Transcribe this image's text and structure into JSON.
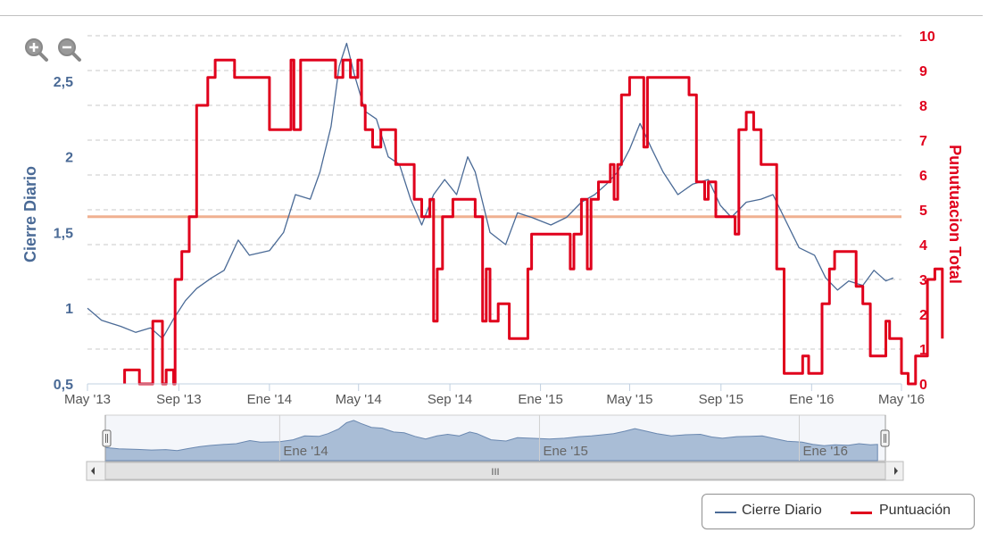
{
  "zoom": {
    "zoom_in_icon": "magnifier-plus-icon",
    "zoom_out_icon": "magnifier-minus-icon"
  },
  "chart_data": {
    "type": "line",
    "x_ticks": [
      "May '13",
      "Sep '13",
      "Ene '14",
      "May '14",
      "Sep '14",
      "Ene '15",
      "May '15",
      "Sep '15",
      "Ene '16",
      "May '16"
    ],
    "x_tick_dates": [
      "2013-05-01",
      "2013-09-01",
      "2014-01-01",
      "2014-05-01",
      "2014-09-01",
      "2015-01-01",
      "2015-05-01",
      "2015-09-01",
      "2016-01-01",
      "2016-05-01"
    ],
    "xlim": [
      "2013-05-01",
      "2016-05-01"
    ],
    "left_axis": {
      "label": "Cierre Diario",
      "ticks": [
        "0,5",
        "1",
        "1,5",
        "2",
        "2,5"
      ],
      "tick_values": [
        0.5,
        1,
        1.5,
        2,
        2.5
      ],
      "ylim": [
        0.5,
        2.8
      ],
      "color": "#4a6a96"
    },
    "right_axis": {
      "label": "Punutuacion Total",
      "ticks": [
        "0",
        "1",
        "2",
        "3",
        "4",
        "5",
        "6",
        "7",
        "8",
        "9",
        "10"
      ],
      "tick_values": [
        0,
        1,
        2,
        3,
        4,
        5,
        6,
        7,
        8,
        9,
        10
      ],
      "ylim": [
        0,
        10
      ],
      "color": "#e0001c"
    },
    "reference_line": {
      "axis": "right",
      "value": 4.8,
      "color": "#f0b090"
    },
    "grid": true,
    "legend_position": "bottom-right",
    "series": [
      {
        "name": "Cierre Diario",
        "axis": "left",
        "color": "#4a6a96",
        "points": [
          [
            "2013-05-01",
            1.0
          ],
          [
            "2013-05-20",
            0.92
          ],
          [
            "2013-06-15",
            0.88
          ],
          [
            "2013-07-05",
            0.84
          ],
          [
            "2013-07-25",
            0.87
          ],
          [
            "2013-08-10",
            0.8
          ],
          [
            "2013-08-25",
            0.93
          ],
          [
            "2013-09-10",
            1.05
          ],
          [
            "2013-09-25",
            1.13
          ],
          [
            "2013-10-15",
            1.2
          ],
          [
            "2013-11-01",
            1.25
          ],
          [
            "2013-11-20",
            1.45
          ],
          [
            "2013-12-05",
            1.35
          ],
          [
            "2014-01-01",
            1.38
          ],
          [
            "2014-01-20",
            1.5
          ],
          [
            "2014-02-05",
            1.75
          ],
          [
            "2014-02-25",
            1.72
          ],
          [
            "2014-03-10",
            1.9
          ],
          [
            "2014-03-25",
            2.2
          ],
          [
            "2014-04-05",
            2.6
          ],
          [
            "2014-04-15",
            2.75
          ],
          [
            "2014-04-25",
            2.55
          ],
          [
            "2014-05-10",
            2.3
          ],
          [
            "2014-05-25",
            2.25
          ],
          [
            "2014-06-10",
            2.0
          ],
          [
            "2014-06-25",
            1.95
          ],
          [
            "2014-07-10",
            1.72
          ],
          [
            "2014-07-25",
            1.55
          ],
          [
            "2014-08-10",
            1.75
          ],
          [
            "2014-08-25",
            1.85
          ],
          [
            "2014-09-10",
            1.75
          ],
          [
            "2014-09-25",
            2.0
          ],
          [
            "2014-10-05",
            1.9
          ],
          [
            "2014-10-25",
            1.5
          ],
          [
            "2014-11-15",
            1.42
          ],
          [
            "2014-12-01",
            1.63
          ],
          [
            "2014-12-20",
            1.6
          ],
          [
            "2015-01-15",
            1.55
          ],
          [
            "2015-02-05",
            1.6
          ],
          [
            "2015-02-25",
            1.7
          ],
          [
            "2015-03-15",
            1.75
          ],
          [
            "2015-03-31",
            1.82
          ],
          [
            "2015-04-15",
            1.9
          ],
          [
            "2015-05-01",
            2.05
          ],
          [
            "2015-05-15",
            2.22
          ],
          [
            "2015-05-31",
            2.05
          ],
          [
            "2015-06-15",
            1.9
          ],
          [
            "2015-07-05",
            1.75
          ],
          [
            "2015-07-25",
            1.82
          ],
          [
            "2015-08-15",
            1.85
          ],
          [
            "2015-08-31",
            1.68
          ],
          [
            "2015-09-15",
            1.6
          ],
          [
            "2015-10-05",
            1.7
          ],
          [
            "2015-10-25",
            1.72
          ],
          [
            "2015-11-10",
            1.75
          ],
          [
            "2015-11-25",
            1.6
          ],
          [
            "2015-12-15",
            1.4
          ],
          [
            "2016-01-05",
            1.35
          ],
          [
            "2016-01-20",
            1.2
          ],
          [
            "2016-02-05",
            1.12
          ],
          [
            "2016-02-20",
            1.18
          ],
          [
            "2016-03-10",
            1.15
          ],
          [
            "2016-03-25",
            1.25
          ],
          [
            "2016-04-10",
            1.18
          ],
          [
            "2016-04-20",
            1.2
          ]
        ]
      },
      {
        "name": "Puntuación",
        "axis": "right",
        "color": "#e0001c",
        "points": [
          [
            "2013-06-20",
            0
          ],
          [
            "2013-06-20",
            0.4
          ],
          [
            "2013-07-10",
            0.4
          ],
          [
            "2013-07-10",
            0
          ],
          [
            "2013-07-28",
            0
          ],
          [
            "2013-07-28",
            1.8
          ],
          [
            "2013-08-10",
            1.8
          ],
          [
            "2013-08-10",
            0
          ],
          [
            "2013-08-15",
            0
          ],
          [
            "2013-08-15",
            0.4
          ],
          [
            "2013-08-25",
            0.4
          ],
          [
            "2013-08-25",
            0
          ],
          [
            "2013-08-27",
            0
          ],
          [
            "2013-08-27",
            3
          ],
          [
            "2013-09-05",
            3
          ],
          [
            "2013-09-05",
            3.8
          ],
          [
            "2013-09-15",
            3.8
          ],
          [
            "2013-09-15",
            4.8
          ],
          [
            "2013-09-25",
            4.8
          ],
          [
            "2013-09-25",
            8
          ],
          [
            "2013-10-10",
            8
          ],
          [
            "2013-10-10",
            8.8
          ],
          [
            "2013-10-20",
            8.8
          ],
          [
            "2013-10-20",
            9.3
          ],
          [
            "2013-11-15",
            9.3
          ],
          [
            "2013-11-15",
            8.8
          ],
          [
            "2014-01-01",
            8.8
          ],
          [
            "2014-01-01",
            7.3
          ],
          [
            "2014-01-30",
            7.3
          ],
          [
            "2014-01-30",
            9.3
          ],
          [
            "2014-02-03",
            9.3
          ],
          [
            "2014-02-03",
            7.3
          ],
          [
            "2014-02-12",
            7.3
          ],
          [
            "2014-02-12",
            9.3
          ],
          [
            "2014-03-31",
            9.3
          ],
          [
            "2014-03-31",
            8.8
          ],
          [
            "2014-04-10",
            8.8
          ],
          [
            "2014-04-10",
            9.3
          ],
          [
            "2014-04-20",
            9.3
          ],
          [
            "2014-04-20",
            8.8
          ],
          [
            "2014-04-30",
            8.8
          ],
          [
            "2014-04-30",
            9.3
          ],
          [
            "2014-05-05",
            9.3
          ],
          [
            "2014-05-05",
            8.0
          ],
          [
            "2014-05-10",
            8.0
          ],
          [
            "2014-05-10",
            7.3
          ],
          [
            "2014-05-20",
            7.3
          ],
          [
            "2014-05-20",
            6.8
          ],
          [
            "2014-05-31",
            6.8
          ],
          [
            "2014-05-31",
            7.3
          ],
          [
            "2014-06-20",
            7.3
          ],
          [
            "2014-06-20",
            6.3
          ],
          [
            "2014-07-15",
            6.3
          ],
          [
            "2014-07-15",
            5.3
          ],
          [
            "2014-07-25",
            5.3
          ],
          [
            "2014-07-25",
            4.8
          ],
          [
            "2014-08-05",
            4.8
          ],
          [
            "2014-08-05",
            5.3
          ],
          [
            "2014-08-10",
            5.3
          ],
          [
            "2014-08-10",
            1.8
          ],
          [
            "2014-08-15",
            1.8
          ],
          [
            "2014-08-15",
            3.3
          ],
          [
            "2014-08-22",
            3.3
          ],
          [
            "2014-08-22",
            4.8
          ],
          [
            "2014-09-05",
            4.8
          ],
          [
            "2014-09-05",
            5.3
          ],
          [
            "2014-10-05",
            5.3
          ],
          [
            "2014-10-05",
            4.8
          ],
          [
            "2014-10-15",
            4.8
          ],
          [
            "2014-10-15",
            1.8
          ],
          [
            "2014-10-20",
            1.8
          ],
          [
            "2014-10-20",
            3.3
          ],
          [
            "2014-10-25",
            3.3
          ],
          [
            "2014-10-25",
            1.8
          ],
          [
            "2014-11-05",
            1.8
          ],
          [
            "2014-11-05",
            2.3
          ],
          [
            "2014-11-20",
            2.3
          ],
          [
            "2014-11-20",
            1.3
          ],
          [
            "2014-12-15",
            1.3
          ],
          [
            "2014-12-15",
            3.3
          ],
          [
            "2014-12-20",
            3.3
          ],
          [
            "2014-12-20",
            4.3
          ],
          [
            "2015-02-10",
            4.3
          ],
          [
            "2015-02-10",
            3.3
          ],
          [
            "2015-02-15",
            3.3
          ],
          [
            "2015-02-15",
            4.3
          ],
          [
            "2015-02-25",
            4.3
          ],
          [
            "2015-02-25",
            5.3
          ],
          [
            "2015-03-05",
            5.3
          ],
          [
            "2015-03-05",
            3.3
          ],
          [
            "2015-03-10",
            3.3
          ],
          [
            "2015-03-10",
            5.3
          ],
          [
            "2015-03-20",
            5.3
          ],
          [
            "2015-03-20",
            5.8
          ],
          [
            "2015-04-05",
            5.8
          ],
          [
            "2015-04-05",
            6.3
          ],
          [
            "2015-04-10",
            6.3
          ],
          [
            "2015-04-10",
            5.3
          ],
          [
            "2015-04-15",
            5.3
          ],
          [
            "2015-04-15",
            6.3
          ],
          [
            "2015-04-20",
            6.3
          ],
          [
            "2015-04-20",
            8.3
          ],
          [
            "2015-05-01",
            8.3
          ],
          [
            "2015-05-01",
            8.8
          ],
          [
            "2015-05-20",
            8.8
          ],
          [
            "2015-05-20",
            6.8
          ],
          [
            "2015-05-25",
            6.8
          ],
          [
            "2015-05-25",
            8.8
          ],
          [
            "2015-07-20",
            8.8
          ],
          [
            "2015-07-20",
            8.3
          ],
          [
            "2015-07-30",
            8.3
          ],
          [
            "2015-07-30",
            5.8
          ],
          [
            "2015-08-10",
            5.8
          ],
          [
            "2015-08-10",
            5.3
          ],
          [
            "2015-08-15",
            5.3
          ],
          [
            "2015-08-15",
            5.8
          ],
          [
            "2015-08-25",
            5.8
          ],
          [
            "2015-08-25",
            4.8
          ],
          [
            "2015-09-20",
            4.8
          ],
          [
            "2015-09-20",
            4.3
          ],
          [
            "2015-09-25",
            4.3
          ],
          [
            "2015-09-25",
            7.3
          ],
          [
            "2015-10-05",
            7.3
          ],
          [
            "2015-10-05",
            7.8
          ],
          [
            "2015-10-15",
            7.8
          ],
          [
            "2015-10-15",
            7.3
          ],
          [
            "2015-10-25",
            7.3
          ],
          [
            "2015-10-25",
            6.3
          ],
          [
            "2015-11-15",
            6.3
          ],
          [
            "2015-11-15",
            3.3
          ],
          [
            "2015-11-25",
            3.3
          ],
          [
            "2015-11-25",
            0.3
          ],
          [
            "2015-12-20",
            0.3
          ],
          [
            "2015-12-20",
            0.8
          ],
          [
            "2015-12-28",
            0.8
          ],
          [
            "2015-12-28",
            0.3
          ],
          [
            "2016-01-15",
            0.3
          ],
          [
            "2016-01-15",
            2.3
          ],
          [
            "2016-01-25",
            2.3
          ],
          [
            "2016-01-25",
            3.3
          ],
          [
            "2016-02-01",
            3.3
          ],
          [
            "2016-02-01",
            3.8
          ],
          [
            "2016-03-01",
            3.8
          ],
          [
            "2016-03-01",
            2.8
          ],
          [
            "2016-03-10",
            2.8
          ],
          [
            "2016-03-10",
            2.3
          ],
          [
            "2016-03-20",
            2.3
          ],
          [
            "2016-03-20",
            0.8
          ],
          [
            "2016-04-10",
            0.8
          ],
          [
            "2016-04-10",
            1.8
          ],
          [
            "2016-04-15",
            1.8
          ],
          [
            "2016-04-15",
            1.3
          ],
          [
            "2016-05-01",
            1.3
          ],
          [
            "2016-05-01",
            0.3
          ],
          [
            "2016-05-10",
            0.3
          ],
          [
            "2016-05-10",
            0
          ],
          [
            "2016-05-20",
            0
          ],
          [
            "2016-05-20",
            0.8
          ],
          [
            "2016-06-05",
            0.8
          ],
          [
            "2016-06-05",
            3.0
          ],
          [
            "2016-06-15",
            3.0
          ],
          [
            "2016-06-15",
            3.3
          ],
          [
            "2016-06-25",
            3.3
          ],
          [
            "2016-06-25",
            1.3
          ]
        ]
      }
    ]
  },
  "navigator": {
    "ticks": [
      "Ene '14",
      "Ene '15",
      "Ene '16"
    ],
    "tick_dates": [
      "2014-01-01",
      "2015-01-01",
      "2016-01-01"
    ],
    "scrollbar_grip": "III"
  },
  "legend": {
    "items": [
      {
        "label": "Cierre Diario",
        "color": "#4a6a96"
      },
      {
        "label": "Puntuación",
        "color": "#e0001c"
      }
    ]
  }
}
